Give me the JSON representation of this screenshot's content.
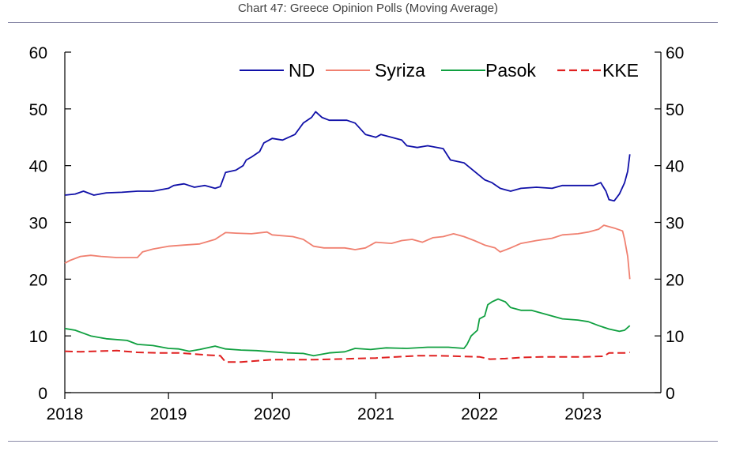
{
  "chart_data": {
    "type": "line",
    "title": "Chart 47: Greece Opinion Polls (Moving Average)",
    "xlabel": "",
    "ylabel": "",
    "xlim": [
      2018.0,
      2023.75
    ],
    "ylim": [
      0,
      60
    ],
    "x_ticks": [
      "2018",
      "2019",
      "2020",
      "2021",
      "2022",
      "2023"
    ],
    "y_ticks": [
      "0",
      "10",
      "20",
      "30",
      "40",
      "50",
      "60"
    ],
    "secondary_axis": true,
    "grid": false,
    "legend_position": "top-right",
    "series": [
      {
        "name": "ND",
        "color": "#1010a8",
        "dash": "solid",
        "points": [
          [
            2018.0,
            34.8
          ],
          [
            2018.1,
            35.0
          ],
          [
            2018.18,
            35.5
          ],
          [
            2018.28,
            34.8
          ],
          [
            2018.4,
            35.2
          ],
          [
            2018.55,
            35.3
          ],
          [
            2018.7,
            35.5
          ],
          [
            2018.85,
            35.5
          ],
          [
            2019.0,
            36.0
          ],
          [
            2019.05,
            36.5
          ],
          [
            2019.15,
            36.8
          ],
          [
            2019.25,
            36.2
          ],
          [
            2019.35,
            36.5
          ],
          [
            2019.45,
            36.0
          ],
          [
            2019.5,
            36.3
          ],
          [
            2019.55,
            38.8
          ],
          [
            2019.65,
            39.2
          ],
          [
            2019.72,
            40.0
          ],
          [
            2019.75,
            41.0
          ],
          [
            2019.8,
            41.5
          ],
          [
            2019.88,
            42.5
          ],
          [
            2019.92,
            44.0
          ],
          [
            2020.0,
            44.8
          ],
          [
            2020.1,
            44.5
          ],
          [
            2020.22,
            45.5
          ],
          [
            2020.3,
            47.5
          ],
          [
            2020.38,
            48.5
          ],
          [
            2020.42,
            49.5
          ],
          [
            2020.48,
            48.5
          ],
          [
            2020.55,
            48.0
          ],
          [
            2020.72,
            48.0
          ],
          [
            2020.8,
            47.5
          ],
          [
            2020.9,
            45.5
          ],
          [
            2021.0,
            45.0
          ],
          [
            2021.05,
            45.5
          ],
          [
            2021.15,
            45.0
          ],
          [
            2021.25,
            44.5
          ],
          [
            2021.3,
            43.5
          ],
          [
            2021.4,
            43.2
          ],
          [
            2021.5,
            43.5
          ],
          [
            2021.65,
            43.0
          ],
          [
            2021.72,
            41.0
          ],
          [
            2021.85,
            40.5
          ],
          [
            2021.95,
            39.0
          ],
          [
            2022.05,
            37.5
          ],
          [
            2022.12,
            37.0
          ],
          [
            2022.2,
            36.0
          ],
          [
            2022.3,
            35.5
          ],
          [
            2022.4,
            36.0
          ],
          [
            2022.55,
            36.2
          ],
          [
            2022.7,
            36.0
          ],
          [
            2022.8,
            36.5
          ],
          [
            2022.95,
            36.5
          ],
          [
            2023.1,
            36.5
          ],
          [
            2023.17,
            37.0
          ],
          [
            2023.22,
            35.5
          ],
          [
            2023.25,
            34.0
          ],
          [
            2023.3,
            33.8
          ],
          [
            2023.35,
            35.0
          ],
          [
            2023.4,
            37.0
          ],
          [
            2023.43,
            39.0
          ],
          [
            2023.45,
            42.0
          ]
        ]
      },
      {
        "name": "Syriza",
        "color": "#f08070",
        "dash": "solid",
        "points": [
          [
            2018.0,
            22.8
          ],
          [
            2018.05,
            23.3
          ],
          [
            2018.15,
            24.0
          ],
          [
            2018.25,
            24.2
          ],
          [
            2018.35,
            24.0
          ],
          [
            2018.5,
            23.8
          ],
          [
            2018.7,
            23.8
          ],
          [
            2018.75,
            24.8
          ],
          [
            2018.85,
            25.3
          ],
          [
            2019.0,
            25.8
          ],
          [
            2019.15,
            26.0
          ],
          [
            2019.3,
            26.2
          ],
          [
            2019.45,
            27.0
          ],
          [
            2019.55,
            28.2
          ],
          [
            2019.65,
            28.1
          ],
          [
            2019.8,
            28.0
          ],
          [
            2019.95,
            28.3
          ],
          [
            2020.0,
            27.8
          ],
          [
            2020.2,
            27.5
          ],
          [
            2020.3,
            27.0
          ],
          [
            2020.4,
            25.8
          ],
          [
            2020.5,
            25.5
          ],
          [
            2020.7,
            25.5
          ],
          [
            2020.8,
            25.2
          ],
          [
            2020.9,
            25.5
          ],
          [
            2021.0,
            26.5
          ],
          [
            2021.15,
            26.3
          ],
          [
            2021.25,
            26.8
          ],
          [
            2021.35,
            27.0
          ],
          [
            2021.45,
            26.5
          ],
          [
            2021.55,
            27.3
          ],
          [
            2021.65,
            27.5
          ],
          [
            2021.75,
            28.0
          ],
          [
            2021.85,
            27.5
          ],
          [
            2021.95,
            26.8
          ],
          [
            2022.05,
            26.0
          ],
          [
            2022.15,
            25.5
          ],
          [
            2022.2,
            24.8
          ],
          [
            2022.3,
            25.5
          ],
          [
            2022.4,
            26.3
          ],
          [
            2022.55,
            26.8
          ],
          [
            2022.7,
            27.2
          ],
          [
            2022.8,
            27.8
          ],
          [
            2022.95,
            28.0
          ],
          [
            2023.05,
            28.3
          ],
          [
            2023.15,
            28.8
          ],
          [
            2023.2,
            29.5
          ],
          [
            2023.3,
            29.0
          ],
          [
            2023.38,
            28.5
          ],
          [
            2023.4,
            27.0
          ],
          [
            2023.43,
            24.0
          ],
          [
            2023.45,
            20.0
          ]
        ]
      },
      {
        "name": "Pasok",
        "color": "#10a040",
        "dash": "solid",
        "points": [
          [
            2018.0,
            11.3
          ],
          [
            2018.1,
            11.0
          ],
          [
            2018.25,
            10.0
          ],
          [
            2018.4,
            9.5
          ],
          [
            2018.6,
            9.2
          ],
          [
            2018.7,
            8.5
          ],
          [
            2018.85,
            8.3
          ],
          [
            2019.0,
            7.8
          ],
          [
            2019.1,
            7.7
          ],
          [
            2019.2,
            7.3
          ],
          [
            2019.3,
            7.6
          ],
          [
            2019.45,
            8.2
          ],
          [
            2019.55,
            7.7
          ],
          [
            2019.7,
            7.5
          ],
          [
            2019.85,
            7.4
          ],
          [
            2020.0,
            7.2
          ],
          [
            2020.15,
            7.0
          ],
          [
            2020.3,
            6.9
          ],
          [
            2020.4,
            6.5
          ],
          [
            2020.55,
            7.0
          ],
          [
            2020.7,
            7.2
          ],
          [
            2020.8,
            7.8
          ],
          [
            2020.95,
            7.6
          ],
          [
            2021.1,
            7.9
          ],
          [
            2021.3,
            7.8
          ],
          [
            2021.5,
            8.0
          ],
          [
            2021.7,
            8.0
          ],
          [
            2021.85,
            7.8
          ],
          [
            2021.88,
            8.5
          ],
          [
            2021.92,
            10.0
          ],
          [
            2021.98,
            11.0
          ],
          [
            2022.0,
            13.0
          ],
          [
            2022.05,
            13.5
          ],
          [
            2022.08,
            15.5
          ],
          [
            2022.12,
            16.0
          ],
          [
            2022.18,
            16.5
          ],
          [
            2022.25,
            16.0
          ],
          [
            2022.3,
            15.0
          ],
          [
            2022.4,
            14.5
          ],
          [
            2022.5,
            14.5
          ],
          [
            2022.6,
            14.0
          ],
          [
            2022.7,
            13.5
          ],
          [
            2022.8,
            13.0
          ],
          [
            2022.95,
            12.8
          ],
          [
            2023.05,
            12.5
          ],
          [
            2023.15,
            11.8
          ],
          [
            2023.25,
            11.2
          ],
          [
            2023.35,
            10.8
          ],
          [
            2023.4,
            11.0
          ],
          [
            2023.45,
            11.8
          ]
        ]
      },
      {
        "name": "KKE",
        "color": "#e02020",
        "dash": "dashed",
        "points": [
          [
            2018.0,
            7.3
          ],
          [
            2018.15,
            7.2
          ],
          [
            2018.3,
            7.3
          ],
          [
            2018.5,
            7.4
          ],
          [
            2018.7,
            7.1
          ],
          [
            2018.9,
            7.0
          ],
          [
            2019.1,
            7.0
          ],
          [
            2019.25,
            6.8
          ],
          [
            2019.4,
            6.6
          ],
          [
            2019.5,
            6.5
          ],
          [
            2019.55,
            5.4
          ],
          [
            2019.7,
            5.4
          ],
          [
            2019.85,
            5.6
          ],
          [
            2020.0,
            5.8
          ],
          [
            2020.2,
            5.8
          ],
          [
            2020.4,
            5.8
          ],
          [
            2020.6,
            5.9
          ],
          [
            2020.8,
            6.0
          ],
          [
            2021.0,
            6.1
          ],
          [
            2021.2,
            6.3
          ],
          [
            2021.4,
            6.5
          ],
          [
            2021.6,
            6.5
          ],
          [
            2021.8,
            6.4
          ],
          [
            2022.0,
            6.3
          ],
          [
            2022.1,
            5.9
          ],
          [
            2022.25,
            6.0
          ],
          [
            2022.4,
            6.2
          ],
          [
            2022.6,
            6.3
          ],
          [
            2022.8,
            6.3
          ],
          [
            2023.0,
            6.3
          ],
          [
            2023.2,
            6.4
          ],
          [
            2023.25,
            7.0
          ],
          [
            2023.4,
            7.0
          ],
          [
            2023.45,
            7.1
          ]
        ]
      }
    ]
  }
}
